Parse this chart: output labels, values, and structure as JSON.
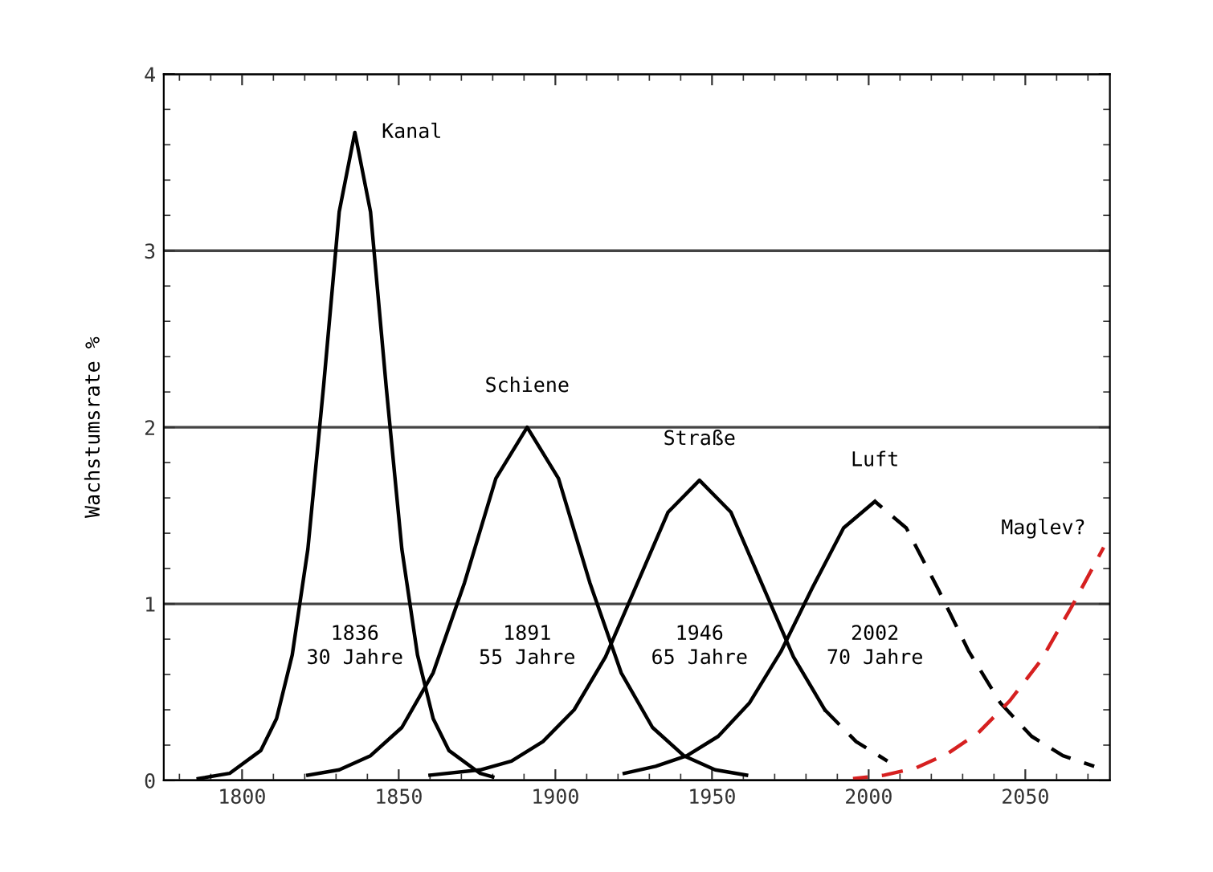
{
  "chart_data": {
    "type": "line",
    "ylabel": "Wachstumsrate %",
    "xlim": [
      1775,
      2077
    ],
    "ylim": [
      0,
      4
    ],
    "xticks": [
      1800,
      1850,
      1900,
      1950,
      2000,
      2050
    ],
    "yticks": [
      0,
      1,
      2,
      3,
      4
    ],
    "grid": "y",
    "marker": "none",
    "series": [
      {
        "name": "Kanal",
        "color": "#000000",
        "line_style": "solid",
        "x": [
          1786,
          1796,
          1806,
          1811,
          1816,
          1821,
          1826,
          1831,
          1836,
          1841,
          1846,
          1851,
          1856,
          1861,
          1866,
          1876,
          1880
        ],
        "values": [
          0.01,
          0.04,
          0.17,
          0.35,
          0.71,
          1.31,
          2.23,
          3.22,
          3.67,
          3.22,
          2.23,
          1.31,
          0.71,
          0.35,
          0.17,
          0.04,
          0.02
        ]
      },
      {
        "name": "Schiene",
        "color": "#000000",
        "line_style": "solid",
        "x": [
          1821,
          1831,
          1841,
          1851,
          1861,
          1871,
          1881,
          1891,
          1901,
          1911,
          1921,
          1931,
          1941,
          1951,
          1961
        ],
        "values": [
          0.03,
          0.06,
          0.14,
          0.3,
          0.61,
          1.12,
          1.71,
          2.0,
          1.71,
          1.12,
          0.61,
          0.3,
          0.14,
          0.06,
          0.03
        ]
      },
      {
        "name": "Straße",
        "color": "#000000",
        "line_style": "solid",
        "x": [
          1860,
          1876,
          1886,
          1896,
          1906,
          1916,
          1926,
          1936,
          1946,
          1956,
          1966,
          1976,
          1986
        ],
        "values": [
          0.03,
          0.06,
          0.11,
          0.22,
          0.4,
          0.7,
          1.11,
          1.52,
          1.7,
          1.52,
          1.11,
          0.7,
          0.4
        ]
      },
      {
        "color": "#000000",
        "line_style": "dashed",
        "x": [
          1986,
          1996,
          2006
        ],
        "values": [
          0.4,
          0.22,
          0.11
        ]
      },
      {
        "name": "Luft",
        "color": "#000000",
        "line_style": "solid",
        "x": [
          1922,
          1932,
          1942,
          1952,
          1962,
          1972,
          1982,
          1992,
          2002
        ],
        "values": [
          0.04,
          0.08,
          0.14,
          0.25,
          0.44,
          0.73,
          1.09,
          1.43,
          1.58
        ]
      },
      {
        "color": "#000000",
        "line_style": "dashed",
        "x": [
          2002,
          2012,
          2022,
          2032,
          2042,
          2052,
          2062,
          2072
        ],
        "values": [
          1.58,
          1.43,
          1.09,
          0.73,
          0.44,
          0.25,
          0.14,
          0.08
        ]
      },
      {
        "name": "Maglev?",
        "color": "#d62020",
        "line_style": "dashed",
        "x": [
          1995,
          2005,
          2015,
          2025,
          2035,
          2045,
          2055,
          2065,
          2075
        ],
        "values": [
          0.01,
          0.03,
          0.07,
          0.15,
          0.27,
          0.45,
          0.68,
          0.99,
          1.32
        ]
      }
    ],
    "annotations": [
      "1836\n30 Jahre",
      "1891\n55 Jahre",
      "1946\n65 Jahre",
      "2002\n70 Jahre"
    ]
  }
}
